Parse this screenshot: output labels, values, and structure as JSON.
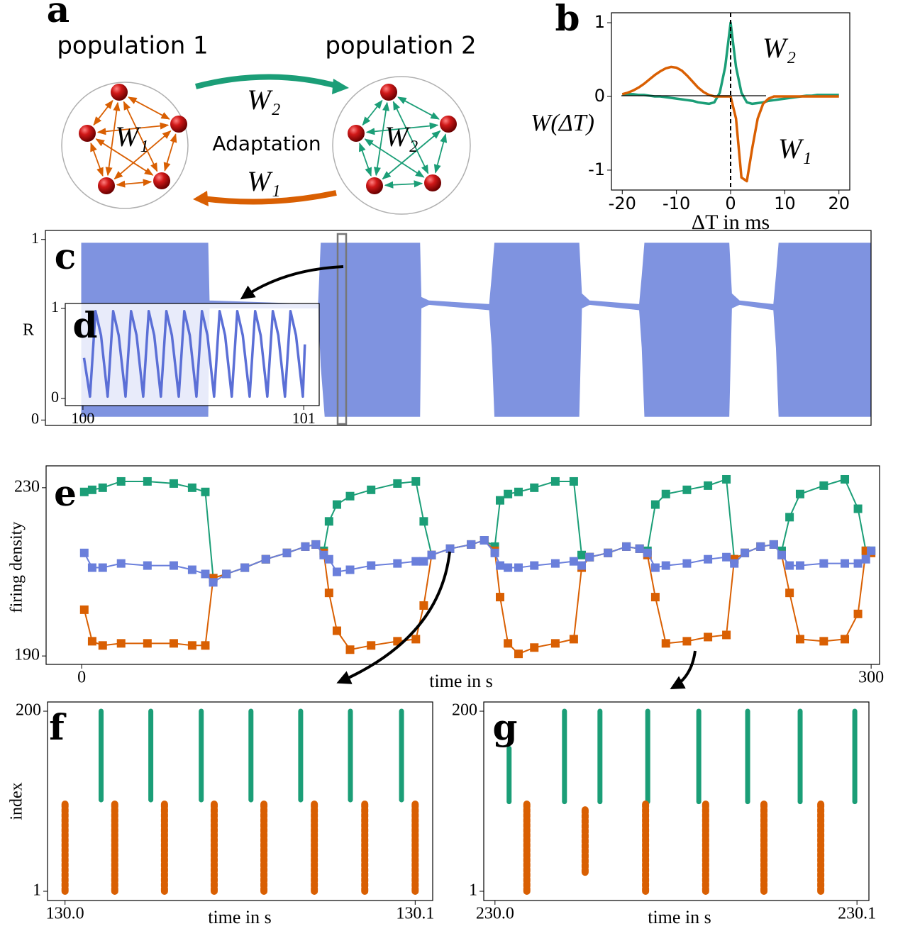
{
  "diagram": {
    "label": "a",
    "population_1": "population 1",
    "population_2": "population 2",
    "pop1_weight": "W₁",
    "pop2_weight": "W₂",
    "arrow_top": "W₂",
    "arrow_bottom": "W₁",
    "center": "Adaptation"
  },
  "chart_data": [
    {
      "type": "line",
      "label": "b",
      "ylabel": "W(ΔT)",
      "xlabel": "ΔT in ms",
      "x": [
        -20,
        -19,
        -18,
        -17,
        -16,
        -15,
        -14,
        -13,
        -12,
        -11,
        -10,
        -9,
        -8,
        -7,
        -6,
        -5,
        -4,
        -3,
        -2,
        -1,
        0,
        1,
        2,
        3,
        4,
        5,
        6,
        7,
        8,
        9,
        10,
        11,
        12,
        13,
        14,
        15,
        16,
        17,
        18,
        19,
        20
      ],
      "series": [
        {
          "name": "W₂",
          "color": "#1b9e77",
          "values": [
            0.03,
            0.03,
            0.03,
            0.02,
            0.02,
            0.01,
            0,
            0,
            -0.01,
            -0.02,
            -0.03,
            -0.04,
            -0.05,
            -0.06,
            -0.08,
            -0.09,
            -0.1,
            -0.08,
            0.05,
            0.4,
            1.0,
            0.4,
            0.05,
            -0.08,
            -0.1,
            -0.09,
            -0.08,
            -0.06,
            -0.05,
            -0.04,
            -0.03,
            -0.02,
            -0.01,
            0,
            0.01,
            0.01,
            0.02,
            0.02,
            0.02,
            0.02,
            0.02
          ]
        },
        {
          "name": "W₁",
          "color": "#d95f02",
          "values": [
            0.03,
            0.05,
            0.08,
            0.12,
            0.17,
            0.23,
            0.29,
            0.34,
            0.38,
            0.4,
            0.39,
            0.35,
            0.28,
            0.2,
            0.12,
            0.06,
            0.02,
            0,
            0,
            0,
            0,
            -0.3,
            -1.1,
            -1.15,
            -0.7,
            -0.3,
            -0.1,
            -0.03,
            0,
            0,
            0,
            0,
            0,
            0,
            0,
            0,
            0,
            0,
            0,
            0,
            0
          ]
        }
      ],
      "xlim": [
        -22,
        22
      ],
      "ylim": [
        -1.27,
        1.135
      ],
      "xticks": [
        -20,
        -10,
        0,
        10,
        20
      ],
      "yticks": [
        -1,
        0,
        1
      ]
    },
    {
      "type": "area",
      "label": "c",
      "ylabel": "R",
      "color": "#7f93e0",
      "x": [
        0,
        48,
        48.5,
        90,
        91,
        92.5,
        128.5,
        129,
        132,
        155,
        156,
        157,
        189,
        190,
        193,
        212,
        213,
        214,
        246,
        247,
        250,
        263,
        264,
        265,
        300
      ],
      "upper": [
        0.98,
        0.98,
        0.66,
        0.64,
        0.98,
        0.98,
        0.98,
        0.68,
        0.66,
        0.64,
        0.8,
        0.98,
        0.98,
        0.7,
        0.66,
        0.64,
        0.8,
        0.98,
        0.98,
        0.7,
        0.66,
        0.64,
        0.8,
        0.98,
        0.98
      ],
      "lower": [
        0.02,
        0.02,
        0.62,
        0.62,
        0.3,
        0.02,
        0.02,
        0.62,
        0.64,
        0.61,
        0.4,
        0.02,
        0.02,
        0.62,
        0.64,
        0.61,
        0.4,
        0.02,
        0.02,
        0.62,
        0.64,
        0.61,
        0.4,
        0.02,
        0.02
      ],
      "xlim": [
        -13.75,
        300
      ],
      "ylim": [
        -0.03,
        1.05
      ],
      "yticks": [
        0,
        1
      ]
    },
    {
      "type": "line",
      "label": "d",
      "x": [
        100.005,
        100.032,
        100.057,
        100.082,
        100.112,
        100.137,
        100.162,
        100.193,
        100.218,
        100.243,
        100.273,
        100.298,
        100.323,
        100.353,
        100.378,
        100.403,
        100.434,
        100.459,
        100.484,
        100.514,
        100.539,
        100.564,
        100.594,
        100.619,
        100.644,
        100.674,
        100.699,
        100.724,
        100.755,
        100.78,
        100.805,
        100.835,
        100.86,
        100.885,
        100.915,
        100.94,
        100.965,
        100.996,
        101.005
      ],
      "series": [
        {
          "color": "#5b6fd6",
          "values": [
            0.45,
            0.02,
            0.97,
            0.7,
            0.02,
            0.97,
            0.7,
            0.02,
            0.97,
            0.7,
            0.02,
            0.97,
            0.7,
            0.02,
            0.97,
            0.7,
            0.02,
            0.97,
            0.7,
            0.02,
            0.97,
            0.7,
            0.02,
            0.97,
            0.7,
            0.02,
            0.97,
            0.7,
            0.02,
            0.97,
            0.7,
            0.02,
            0.97,
            0.7,
            0.02,
            0.97,
            0.7,
            0.02,
            0.6
          ]
        }
      ],
      "xlim": [
        99.92,
        101.07
      ],
      "ylim": [
        -0.08,
        1.055
      ],
      "xticks": [
        100,
        101
      ],
      "yticks": [
        0,
        1
      ]
    },
    {
      "type": "line",
      "label": "e",
      "ylabel": "firing density",
      "xlabel": "time in s",
      "markers": true,
      "x": [
        1,
        4,
        8,
        15,
        25,
        35,
        42,
        47,
        50,
        55,
        62,
        70,
        78,
        85,
        89,
        92,
        94,
        97,
        102,
        110,
        120,
        127,
        130,
        133,
        140,
        148,
        153,
        157,
        159,
        162,
        166,
        172,
        180,
        187,
        190,
        193,
        200,
        207,
        212,
        215,
        218,
        222,
        230,
        238,
        245,
        248,
        252,
        258,
        263,
        266,
        269,
        273,
        282,
        290,
        295,
        298,
        300
      ],
      "series": [
        {
          "color": "#1b9e77",
          "values": [
            229,
            229.5,
            230,
            231.5,
            231.5,
            231,
            230,
            229,
            208.5,
            209.5,
            211,
            213,
            214.5,
            216,
            216.5,
            215,
            222,
            226,
            228,
            229.5,
            231,
            231.5,
            222,
            214,
            215.5,
            216.5,
            217.5,
            216,
            227,
            228.5,
            229,
            230,
            231.5,
            231.5,
            214,
            213.5,
            214.5,
            216,
            215.5,
            215,
            226,
            228.5,
            229.5,
            230.5,
            232,
            213,
            214.5,
            216,
            216.5,
            215,
            223,
            228.5,
            230.5,
            232,
            225,
            215,
            215
          ]
        },
        {
          "color": "#d95f02",
          "values": [
            201,
            193.5,
            192.5,
            193,
            193,
            193,
            192.5,
            192.5,
            208.5,
            209.5,
            211,
            213,
            214.5,
            216,
            216.5,
            214.5,
            205,
            196,
            191.5,
            192.5,
            193.5,
            194,
            202,
            214,
            215.5,
            216.5,
            217.5,
            215,
            204,
            193,
            190.5,
            192,
            193,
            194,
            211,
            213.5,
            214.5,
            216,
            215.5,
            214,
            204,
            193,
            193.5,
            194.5,
            195,
            213,
            214.5,
            216,
            216.5,
            214,
            205,
            194,
            193.5,
            194,
            200,
            215,
            214.5
          ]
        },
        {
          "color": "#6a7fdb",
          "values": [
            214.5,
            211,
            211,
            212,
            211.5,
            211.5,
            210.5,
            209.5,
            207.5,
            209.5,
            211,
            213,
            214.5,
            216,
            216.5,
            214,
            213,
            210,
            210.5,
            211.5,
            212,
            212.5,
            212.5,
            214,
            215.5,
            216.5,
            217.5,
            214.5,
            211.5,
            211,
            211,
            211.5,
            212,
            212.5,
            211.5,
            213.5,
            214.5,
            216,
            215.5,
            214.5,
            211,
            211.5,
            212,
            213,
            213.5,
            212,
            214.5,
            216,
            216.5,
            214,
            211.5,
            211.5,
            212,
            212,
            212,
            213,
            215
          ]
        }
      ],
      "xlim": [
        -13.5,
        303.2
      ],
      "ylim": [
        188,
        235.2
      ],
      "xticks": [
        0,
        300
      ],
      "yticks": [
        190,
        230
      ]
    },
    {
      "type": "raster",
      "label": "f",
      "ylabel": "index",
      "xlabel": "time in s",
      "series": [
        {
          "color": "#1b9e77",
          "x": [
            130.0103,
            130.0245,
            130.0389,
            130.0531,
            130.0673,
            130.0815,
            130.0961
          ],
          "ymin": [
            102,
            102,
            102,
            102,
            102,
            102,
            102
          ],
          "ymax": [
            200,
            200,
            200,
            200,
            200,
            200,
            200
          ]
        },
        {
          "color": "#d95f02",
          "x": [
            130.0,
            130.0142,
            130.0284,
            130.0426,
            130.0568,
            130.0712,
            130.0856,
            130.1
          ],
          "ymin": [
            1,
            1,
            1,
            1,
            1,
            1,
            1,
            1
          ],
          "ymax": [
            98,
            98,
            98,
            98,
            98,
            98,
            98,
            98
          ]
        }
      ],
      "xlim": [
        129.995,
        130.105
      ],
      "ylim": [
        -9.2,
        210.2
      ],
      "xticks": [
        {
          "value": 130,
          "label": "130.0"
        },
        {
          "value": 130.1,
          "label": "130.1"
        }
      ],
      "yticks": [
        1,
        200
      ]
    },
    {
      "type": "raster",
      "label": "g",
      "xlabel": "time in s",
      "series": [
        {
          "color": "#1b9e77",
          "x": [
            230.0039,
            230.0192,
            230.029,
            230.0422,
            230.0563,
            230.0698,
            230.0843,
            230.0994
          ],
          "ymin": [
            100,
            100,
            100,
            100,
            100,
            100,
            100,
            100
          ],
          "ymax": [
            159,
            200,
            200,
            200,
            200,
            200,
            200,
            200
          ]
        },
        {
          "color": "#d95f02",
          "x": [
            230.0088,
            230.0249,
            230.0416,
            230.0582,
            230.0743,
            230.09
          ],
          "ymin": [
            1,
            22,
            1,
            1,
            1,
            1
          ],
          "ymax": [
            98,
            92,
            98,
            98,
            98,
            98
          ]
        }
      ],
      "xlim": [
        229.9969,
        230.1033
      ],
      "ylim": [
        -9.2,
        210.2
      ],
      "xticks": [
        {
          "value": 230,
          "label": "230.0"
        },
        {
          "value": 230.1,
          "label": "230.1"
        }
      ],
      "yticks": [
        1,
        200
      ]
    }
  ]
}
